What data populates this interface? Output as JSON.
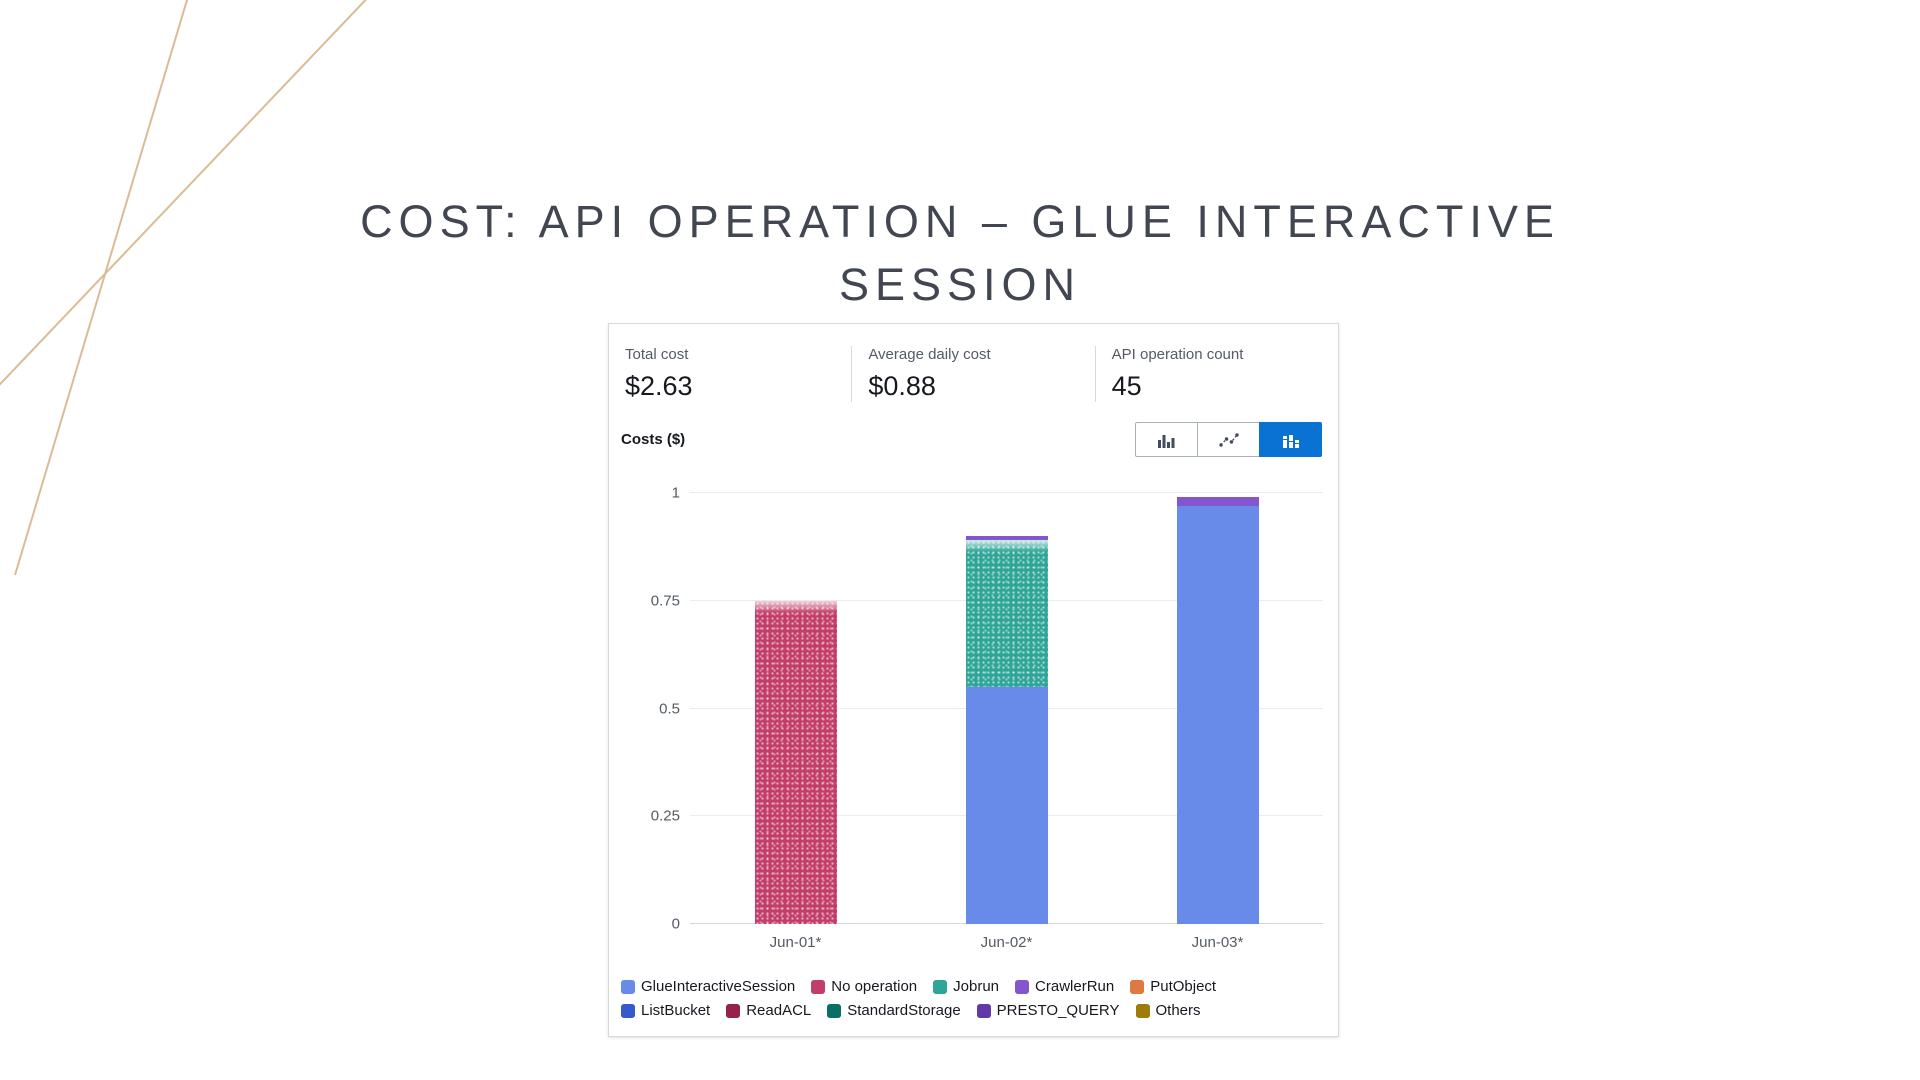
{
  "title": {
    "line1": "COST: API OPERATION – GLUE INTERACTIVE",
    "line2": "SESSION"
  },
  "summary": [
    {
      "label": "Total cost",
      "value": "$2.63"
    },
    {
      "label": "Average daily cost",
      "value": "$0.88"
    },
    {
      "label": "API operation count",
      "value": "45"
    }
  ],
  "chart_toolbar": {
    "ylabel": "Costs ($)",
    "view_toggles": [
      {
        "name": "grouped-bar-view",
        "selected": false
      },
      {
        "name": "line-view",
        "selected": false
      },
      {
        "name": "stacked-bar-view",
        "selected": true
      }
    ]
  },
  "colors": {
    "accent_blue": "#0972d3",
    "decor_line": "#dcbb94",
    "card_border": "#d5dbdb",
    "axis_text": "#545b64"
  },
  "chart_data": {
    "type": "bar",
    "stacked": true,
    "title": "",
    "xlabel": "",
    "ylabel": "Costs ($)",
    "ylim": [
      0,
      1
    ],
    "yticks": [
      0,
      0.25,
      0.5,
      0.75,
      1
    ],
    "grid": true,
    "legend_position": "bottom",
    "categories": [
      "Jun-01*",
      "Jun-02*",
      "Jun-03*"
    ],
    "series": [
      {
        "name": "GlueInteractiveSession",
        "color": "#688ae8",
        "textured": false,
        "values": [
          0,
          0.55,
          0.97
        ]
      },
      {
        "name": "No operation",
        "color": "#c33d69",
        "textured": true,
        "values": [
          0.75,
          0,
          0
        ]
      },
      {
        "name": "Jobrun",
        "color": "#2ea597",
        "textured": true,
        "values": [
          0,
          0.34,
          0
        ]
      },
      {
        "name": "CrawlerRun",
        "color": "#8456ce",
        "textured": false,
        "values": [
          0,
          0.01,
          0.02
        ]
      },
      {
        "name": "PutObject",
        "color": "#e07941",
        "textured": false,
        "values": [
          0,
          0,
          0
        ]
      },
      {
        "name": "ListBucket",
        "color": "#3759ce",
        "textured": false,
        "values": [
          0,
          0,
          0
        ]
      },
      {
        "name": "ReadACL",
        "color": "#962249",
        "textured": false,
        "values": [
          0,
          0,
          0
        ]
      },
      {
        "name": "StandardStorage",
        "color": "#096f64",
        "textured": false,
        "values": [
          0,
          0,
          0
        ]
      },
      {
        "name": "PRESTO_QUERY",
        "color": "#6237a7",
        "textured": false,
        "values": [
          0,
          0,
          0
        ]
      },
      {
        "name": "Others",
        "color": "#9e7c0a",
        "textured": false,
        "values": [
          0,
          0,
          0
        ]
      }
    ]
  }
}
